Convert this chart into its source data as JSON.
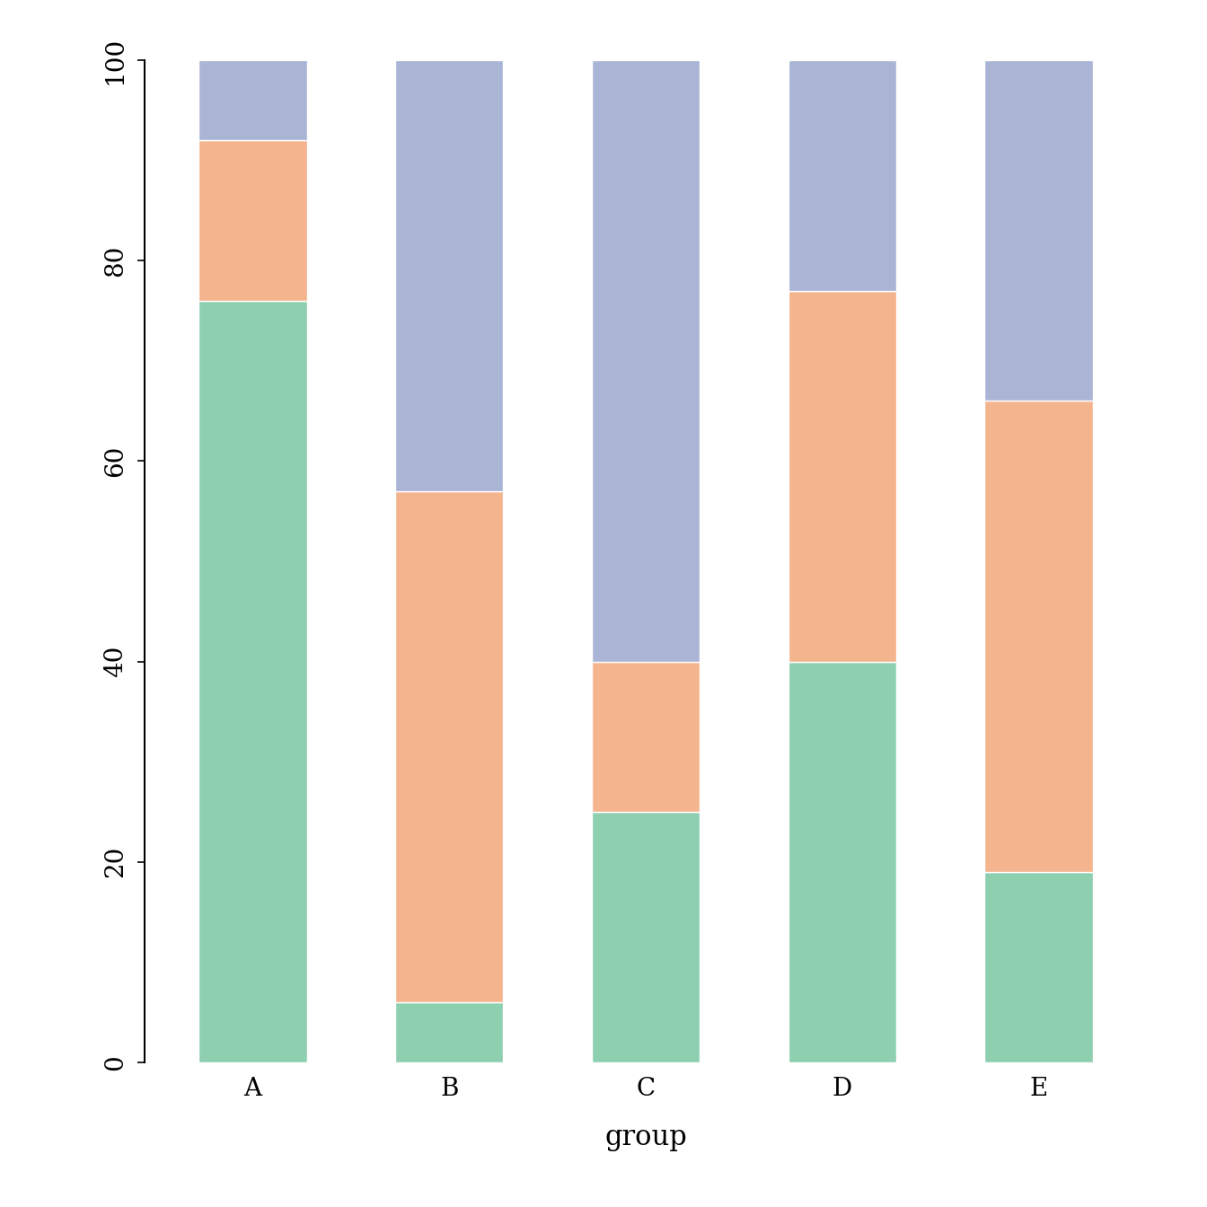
{
  "groups": [
    "A",
    "B",
    "C",
    "D",
    "E"
  ],
  "green_values": [
    76,
    6,
    25,
    40,
    19
  ],
  "orange_values": [
    16,
    51,
    15,
    37,
    47
  ],
  "blue_values": [
    8,
    43,
    60,
    23,
    34
  ],
  "green_color": "#8ecfb0",
  "orange_color": "#f4b48e",
  "blue_color": "#aab4d4",
  "background_color": "#ffffff",
  "xlabel": "group",
  "ylim": [
    0,
    100
  ],
  "yticks": [
    0,
    20,
    40,
    60,
    80,
    100
  ],
  "bar_width": 0.55,
  "xlabel_fontsize": 22,
  "tick_fontsize": 20
}
